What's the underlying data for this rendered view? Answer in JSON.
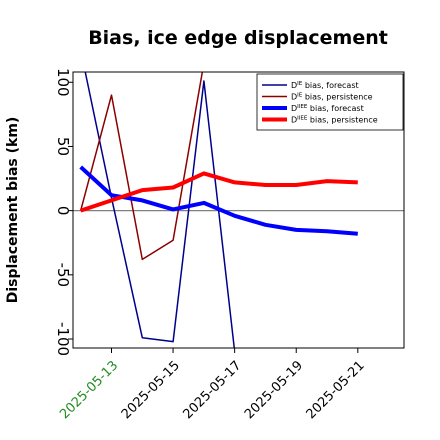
{
  "chart_data": {
    "type": "line",
    "title": "Bias, ice edge displacement",
    "xlabel": "",
    "ylabel": "Displacement bias (km)",
    "ylim": [
      -107,
      108
    ],
    "xlim": [
      "2025-05-11T18:00",
      "2025-05-22T12:00"
    ],
    "x_ticks": [
      "2025-05-13",
      "2025-05-15",
      "2025-05-17",
      "2025-05-19",
      "2025-05-21"
    ],
    "y_ticks": [
      -100,
      -50,
      0,
      50,
      100
    ],
    "grid": false,
    "legend_placement": "top-right",
    "reference_line_y": 0,
    "colors": {
      "tick_highlight": "#228B22",
      "reference_line": "#808080"
    },
    "series": [
      {
        "name": "D^IE bias, forecast",
        "legend_main": "D",
        "legend_sup": "IE",
        "legend_rest": " bias, forecast",
        "color": "#00008B",
        "width": 1.5,
        "x": [
          "2025-05-12",
          "2025-05-13",
          "2025-05-14",
          "2025-05-15",
          "2025-05-16",
          "2025-05-17"
        ],
        "values": [
          125,
          10,
          -99,
          -102,
          101,
          -110
        ]
      },
      {
        "name": "D^IE bias, persistence",
        "legend_main": "D",
        "legend_sup": "IE",
        "legend_rest": " bias, persistence",
        "color": "#8B0000",
        "width": 1.5,
        "x": [
          "2025-05-12",
          "2025-05-13",
          "2025-05-14",
          "2025-05-15",
          "2025-05-16"
        ],
        "values": [
          0,
          90,
          -38,
          -23,
          115
        ]
      },
      {
        "name": "D^IIEE bias, forecast",
        "legend_main": "D",
        "legend_sup": "IIEE",
        "legend_rest": " bias, forecast",
        "color": "#0000FF",
        "width": 4,
        "x": [
          "2025-05-12",
          "2025-05-13",
          "2025-05-14",
          "2025-05-15",
          "2025-05-16",
          "2025-05-17",
          "2025-05-18",
          "2025-05-19",
          "2025-05-20",
          "2025-05-21"
        ],
        "values": [
          34,
          12,
          8,
          1,
          6,
          -4,
          -11,
          -15,
          -16,
          -18
        ]
      },
      {
        "name": "D^IIEE bias, persistence",
        "legend_main": "D",
        "legend_sup": "IIEE",
        "legend_rest": " bias, persistence",
        "color": "#FF0000",
        "width": 4,
        "x": [
          "2025-05-12",
          "2025-05-13",
          "2025-05-14",
          "2025-05-15",
          "2025-05-16",
          "2025-05-17",
          "2025-05-18",
          "2025-05-19",
          "2025-05-20",
          "2025-05-21"
        ],
        "values": [
          0,
          8,
          16,
          18,
          29,
          22,
          20,
          20,
          23,
          22
        ]
      }
    ]
  }
}
